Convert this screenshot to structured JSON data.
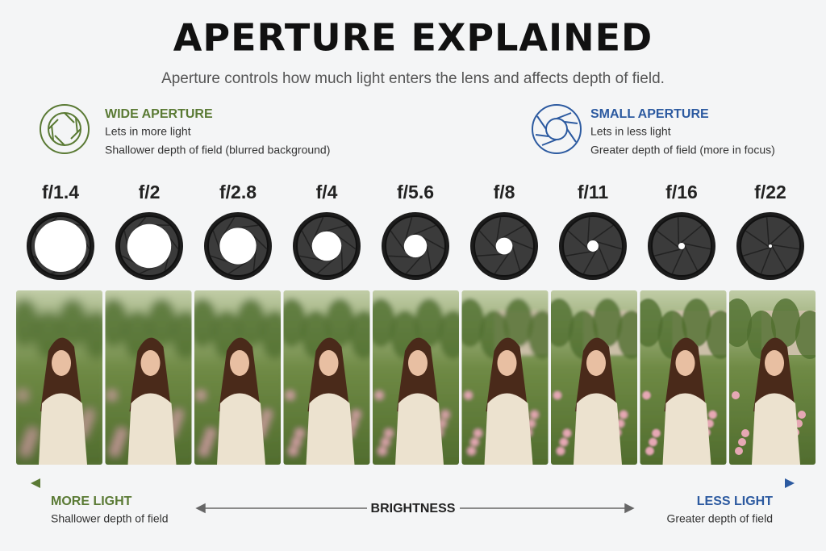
{
  "header": {
    "title": "APERTURE EXPLAINED",
    "subtitle": "Aperture controls how much light enters the lens and affects depth of field."
  },
  "wide_aperture": {
    "title": "WIDE APERTURE",
    "lines": [
      "Lets in more light",
      "Shallower depth of field (blurred background)"
    ]
  },
  "small_aperture": {
    "title": "SMALL APERTURE",
    "lines": [
      "Lets in less light",
      "Greater depth of field (more in focus)"
    ]
  },
  "f_stops": [
    "f/1.4",
    "f/2",
    "f/2.8",
    "f/4",
    "f/5.6",
    "f/8",
    "f/11",
    "f/16",
    "f/22"
  ],
  "footer": {
    "left": {
      "title": "MORE LIGHT",
      "text": "Shallower depth of field"
    },
    "center": "BRIGHTNESS",
    "right": {
      "title": "LESS LIGHT",
      "text": "Greater depth of field"
    }
  }
}
